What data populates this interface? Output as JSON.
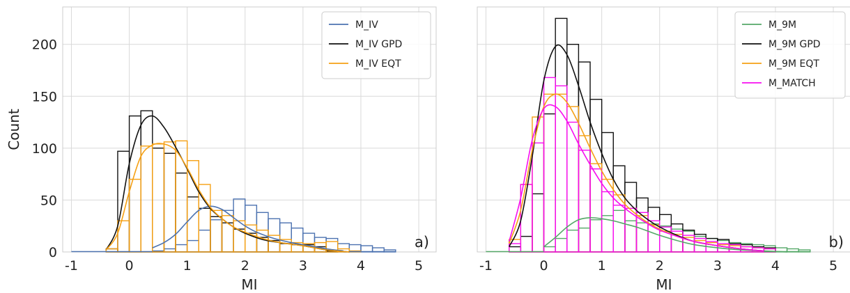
{
  "chart_data": [
    {
      "type": "histogram",
      "panel_label": "a)",
      "xlabel": "MI",
      "ylabel": "Count",
      "xlim": [
        -1.15,
        5.3
      ],
      "ylim": [
        0,
        236
      ],
      "xticks": [
        -1,
        0,
        1,
        2,
        3,
        4,
        5
      ],
      "yticks": [
        0,
        50,
        100,
        150,
        200
      ],
      "grid": true,
      "legend_position": "top-right",
      "bin_width": 0.2,
      "series": [
        {
          "name": "M_IV",
          "color": "#4c72b0",
          "bins_start": 0.4,
          "counts": [
            1,
            3,
            7,
            11,
            21,
            31,
            40,
            51,
            45,
            38,
            32,
            28,
            23,
            18,
            14,
            13,
            8,
            7,
            6,
            4,
            2
          ],
          "kde_x": [
            0.4,
            0.6,
            0.8,
            1.0,
            1.2,
            1.4,
            1.6,
            1.8,
            2.0,
            2.2,
            2.5,
            2.8,
            3.1,
            3.4,
            3.7
          ],
          "kde_y": [
            4,
            9,
            17,
            29,
            40,
            44,
            41,
            33,
            25,
            19,
            13,
            9,
            6,
            3,
            1
          ]
        },
        {
          "name": "M_IV GPD",
          "color": "#111111",
          "bins_start": -0.4,
          "counts": [
            3,
            97,
            131,
            136,
            100,
            95,
            76,
            53,
            42,
            34,
            28,
            22,
            18,
            14,
            11,
            8,
            7,
            7,
            5,
            1
          ],
          "kde_x": [
            -0.4,
            -0.2,
            0.0,
            0.2,
            0.4,
            0.6,
            0.8,
            1.0,
            1.2,
            1.4,
            1.6,
            1.8,
            2.0,
            2.3,
            2.6,
            3.0,
            3.4,
            3.8
          ],
          "kde_y": [
            2,
            25,
            85,
            122,
            131,
            120,
            101,
            80,
            58,
            42,
            32,
            24,
            18,
            12,
            9,
            6,
            2,
            0
          ]
        },
        {
          "name": "M_IV EQT",
          "color": "#f5a014",
          "bins_start": -0.4,
          "counts": [
            3,
            30,
            70,
            102,
            104,
            106,
            107,
            88,
            65,
            40,
            35,
            30,
            26,
            21,
            16,
            12,
            9,
            8,
            9,
            10,
            3,
            1
          ],
          "kde_x": [
            -0.4,
            -0.2,
            0.0,
            0.2,
            0.4,
            0.6,
            0.8,
            1.0,
            1.2,
            1.4,
            1.6,
            1.8,
            2.0,
            2.3,
            2.6,
            3.0,
            3.4,
            3.8
          ],
          "kde_y": [
            2,
            18,
            58,
            92,
            103,
            104,
            98,
            81,
            60,
            43,
            32,
            24,
            19,
            13,
            9,
            6,
            2,
            0
          ]
        }
      ]
    },
    {
      "type": "histogram",
      "panel_label": "b)",
      "xlabel": "MI",
      "ylabel": "",
      "xlim": [
        -1.15,
        5.3
      ],
      "ylim": [
        0,
        236
      ],
      "xticks": [
        -1,
        0,
        1,
        2,
        3,
        4,
        5
      ],
      "yticks": [
        0,
        50,
        100,
        150,
        200
      ],
      "grid": true,
      "legend_position": "top-right",
      "bin_width": 0.2,
      "series": [
        {
          "name": "M_9M",
          "color": "#55a868",
          "bins_start": 0.0,
          "counts": [
            5,
            13,
            21,
            23,
            31,
            35,
            40,
            30,
            28,
            27,
            25,
            22,
            20,
            15,
            13,
            11,
            9,
            8,
            7,
            6,
            4,
            3,
            2
          ],
          "kde_x": [
            0.0,
            0.2,
            0.4,
            0.6,
            0.8,
            1.0,
            1.2,
            1.4,
            1.6,
            1.8,
            2.0,
            2.3,
            2.6,
            3.0,
            3.4,
            3.8,
            4.2
          ],
          "kde_y": [
            5,
            14,
            24,
            31,
            33,
            32,
            30,
            27,
            24,
            20,
            16,
            11,
            7,
            4,
            2,
            1,
            0
          ]
        },
        {
          "name": "M_9M GPD",
          "color": "#111111",
          "bins_start": -0.6,
          "counts": [
            5,
            15,
            56,
            133,
            225,
            200,
            183,
            147,
            115,
            83,
            67,
            52,
            43,
            36,
            27,
            21,
            17,
            13,
            12,
            8,
            7,
            5,
            4
          ],
          "kde_x": [
            -0.6,
            -0.4,
            -0.2,
            0.0,
            0.2,
            0.4,
            0.6,
            0.8,
            1.0,
            1.2,
            1.4,
            1.6,
            1.8,
            2.0,
            2.3,
            2.6,
            3.0,
            3.4,
            3.8
          ],
          "kde_y": [
            5,
            30,
            92,
            165,
            198,
            190,
            160,
            125,
            95,
            70,
            52,
            40,
            31,
            24,
            16,
            10,
            6,
            3,
            1
          ]
        },
        {
          "name": "M_9M EQT",
          "color": "#f5a014",
          "bins_start": -0.6,
          "counts": [
            12,
            65,
            130,
            152,
            152,
            140,
            112,
            85,
            70,
            55,
            42,
            35,
            26,
            20,
            17,
            14,
            11,
            9,
            7,
            6,
            5,
            4,
            3
          ],
          "kde_x": [
            -0.6,
            -0.4,
            -0.2,
            0.0,
            0.2,
            0.4,
            0.6,
            0.8,
            1.0,
            1.2,
            1.4,
            1.6,
            1.8,
            2.0,
            2.3,
            2.6,
            3.0,
            3.4,
            3.8
          ],
          "kde_y": [
            8,
            40,
            98,
            140,
            152,
            144,
            124,
            100,
            78,
            60,
            46,
            36,
            28,
            22,
            15,
            10,
            6,
            3,
            1
          ]
        },
        {
          "name": "M_MATCH",
          "color": "#f70ef0",
          "bins_start": -0.6,
          "counts": [
            8,
            65,
            105,
            168,
            160,
            125,
            98,
            80,
            58,
            45,
            42,
            38,
            30,
            24,
            20,
            16,
            13,
            10,
            8,
            7,
            5,
            4,
            3
          ],
          "kde_x": [
            -0.6,
            -0.4,
            -0.2,
            0.0,
            0.2,
            0.4,
            0.6,
            0.8,
            1.0,
            1.2,
            1.4,
            1.6,
            1.8,
            2.0,
            2.3,
            2.6,
            3.0,
            3.4,
            3.8
          ],
          "kde_y": [
            10,
            52,
            108,
            138,
            140,
            126,
            104,
            84,
            66,
            52,
            42,
            34,
            27,
            21,
            15,
            10,
            6,
            3,
            1
          ]
        }
      ]
    }
  ]
}
